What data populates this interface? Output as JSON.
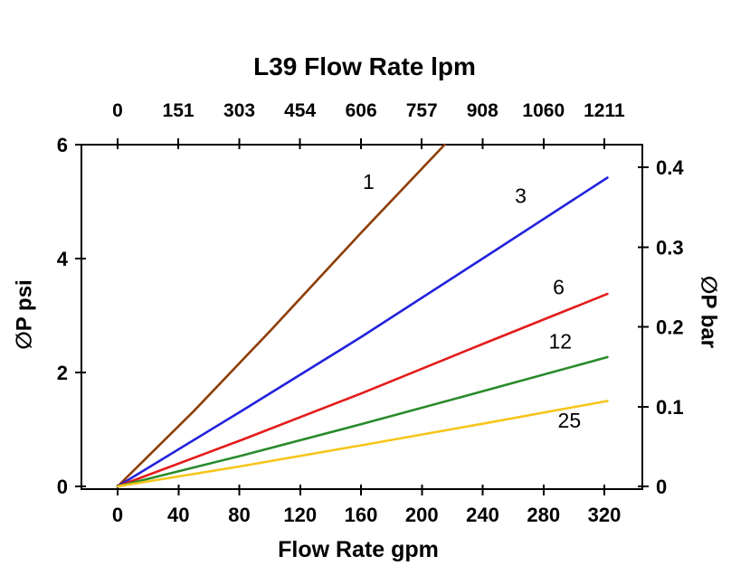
{
  "title": "L39 Flow Rate lpm",
  "chart_data": {
    "type": "line",
    "title": "L39 Flow Rate lpm",
    "x_top": {
      "label": "L39 Flow Rate lpm",
      "ticks": [
        0,
        151,
        303,
        454,
        606,
        757,
        908,
        1060,
        1211
      ],
      "unit": "lpm",
      "lpm_per_gpm": 3.78541
    },
    "x_bottom": {
      "label": "Flow Rate gpm",
      "ticks": [
        0,
        40,
        80,
        120,
        160,
        200,
        240,
        280,
        320
      ],
      "range": [
        0,
        320
      ],
      "unit": "gpm"
    },
    "y_left": {
      "label": "∅P psi",
      "ticks": [
        0,
        2,
        4,
        6
      ],
      "range": [
        0,
        6
      ],
      "unit": "psi"
    },
    "y_right": {
      "label": "∅P bar",
      "ticks": [
        0,
        0.1,
        0.2,
        0.3,
        0.4
      ],
      "psi_per_bar": 14.0,
      "unit": "bar"
    },
    "grid": false,
    "legend": "inline-labels",
    "series": [
      {
        "name": "1",
        "color": "#8e3d05",
        "points": [
          [
            0,
            0
          ],
          [
            50,
            1.32
          ],
          [
            100,
            2.72
          ],
          [
            160,
            4.45
          ],
          [
            215,
            6.0
          ]
        ],
        "label_pos": [
          165,
          5.35
        ]
      },
      {
        "name": "3",
        "color": "#2222dd",
        "points": [
          [
            0,
            0
          ],
          [
            80,
            1.3
          ],
          [
            160,
            2.62
          ],
          [
            240,
            4.0
          ],
          [
            322,
            5.42
          ]
        ],
        "label_pos": [
          265,
          5.1
        ]
      },
      {
        "name": "6",
        "color": "#e31b1b",
        "points": [
          [
            0,
            0
          ],
          [
            80,
            0.8
          ],
          [
            160,
            1.63
          ],
          [
            240,
            2.5
          ],
          [
            322,
            3.38
          ]
        ],
        "label_pos": [
          290,
          3.5
        ]
      },
      {
        "name": "12",
        "color": "#2a8a2a",
        "points": [
          [
            0,
            0
          ],
          [
            80,
            0.53
          ],
          [
            160,
            1.09
          ],
          [
            240,
            1.67
          ],
          [
            322,
            2.27
          ]
        ],
        "label_pos": [
          291,
          2.55
        ]
      },
      {
        "name": "25",
        "color": "#f6c51a",
        "points": [
          [
            0,
            0
          ],
          [
            80,
            0.35
          ],
          [
            160,
            0.72
          ],
          [
            240,
            1.1
          ],
          [
            322,
            1.5
          ]
        ],
        "label_pos": [
          297,
          1.16
        ]
      }
    ]
  }
}
